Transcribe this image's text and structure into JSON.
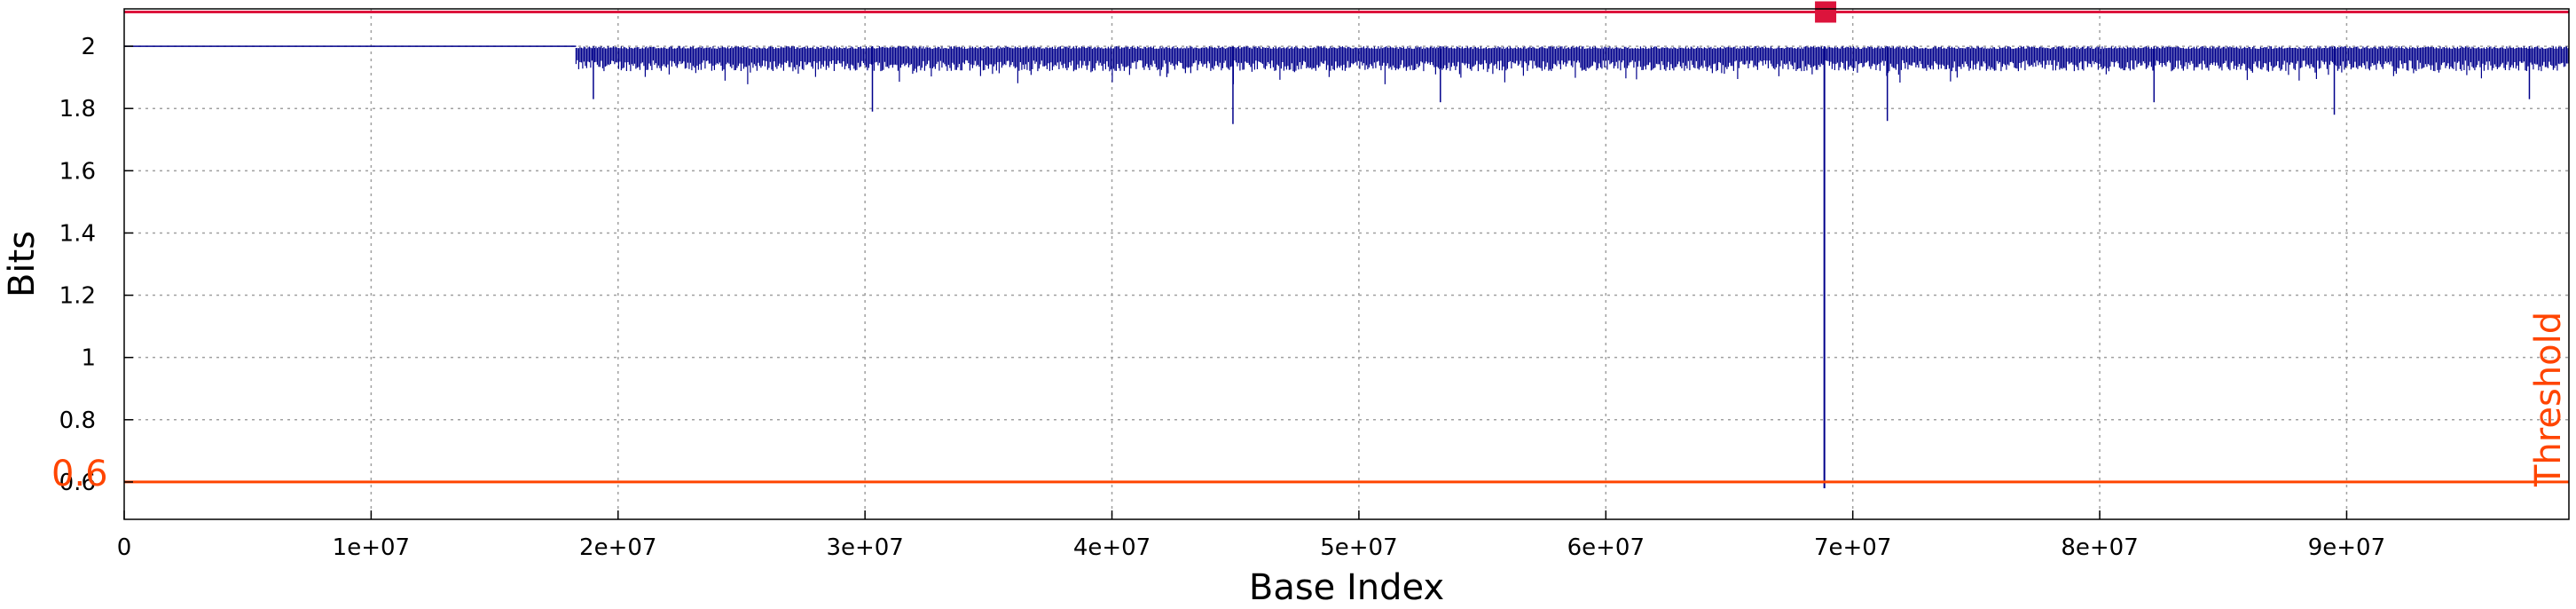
{
  "chart_data": {
    "type": "line",
    "xlabel": "Base Index",
    "ylabel": "Bits",
    "xlim": [
      0,
      99000000
    ],
    "ylim": [
      0.48,
      2.12
    ],
    "x_ticks": [
      0,
      10000000,
      20000000,
      30000000,
      40000000,
      50000000,
      60000000,
      70000000,
      80000000,
      90000000
    ],
    "x_tick_labels": [
      "0",
      "1e+07",
      "2e+07",
      "3e+07",
      "4e+07",
      "5e+07",
      "6e+07",
      "7e+07",
      "8e+07",
      "9e+07"
    ],
    "y_ticks": [
      0.6,
      0.8,
      1,
      1.2,
      1.4,
      1.6,
      1.8,
      2
    ],
    "y_tick_labels": [
      "0.6",
      "0.8",
      "1",
      "1.2",
      "1.4",
      "1.6",
      "1.8",
      "2"
    ],
    "grid": true,
    "series": [
      {
        "color": "#00008b",
        "x": [
          0,
          18200000,
          18300000,
          20000000,
          25000000,
          30000000,
          33000000,
          38000000,
          40000000,
          45000000,
          50000000,
          55000000,
          60000000,
          65000000,
          68800000,
          68850000,
          68900000,
          70000000,
          75000000,
          80000000,
          85000000,
          90000000,
          95000000,
          99000000
        ],
        "y": [
          2,
          2,
          1.97,
          1.96,
          1.96,
          1.96,
          1.96,
          1.96,
          1.95,
          1.96,
          1.96,
          1.96,
          1.96,
          1.96,
          1.96,
          0.58,
          1.96,
          1.96,
          1.96,
          1.96,
          1.96,
          1.96,
          1.96,
          1.96
        ],
        "noise_band_y": [
          1.92,
          2.0
        ],
        "noise_start_x": 18300000,
        "dips": [
          {
            "x": 44900000,
            "y": 1.75
          },
          {
            "x": 30300000,
            "y": 1.79
          },
          {
            "x": 71400000,
            "y": 1.76
          },
          {
            "x": 89500000,
            "y": 1.78
          },
          {
            "x": 19000000,
            "y": 1.83
          },
          {
            "x": 53300000,
            "y": 1.82
          },
          {
            "x": 82200000,
            "y": 1.82
          },
          {
            "x": 97400000,
            "y": 1.83
          }
        ]
      }
    ],
    "threshold": {
      "value": 0.6,
      "label": "Threshold",
      "value_label": "0.6",
      "color": "#ff4500"
    },
    "top_line": {
      "value": 2.11,
      "color": "#dc143c"
    },
    "marker": {
      "x": 68900000,
      "y": 2.11,
      "color": "#dc143c"
    }
  }
}
